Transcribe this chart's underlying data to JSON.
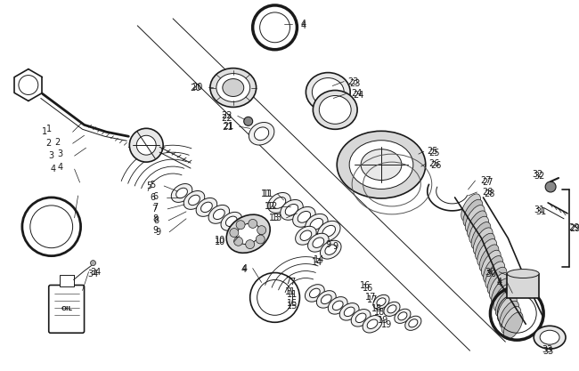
{
  "bg_color": "#ffffff",
  "line_color": "#1a1a1a",
  "label_color": "#000000",
  "fig_width": 6.5,
  "fig_height": 4.17,
  "dpi": 100
}
